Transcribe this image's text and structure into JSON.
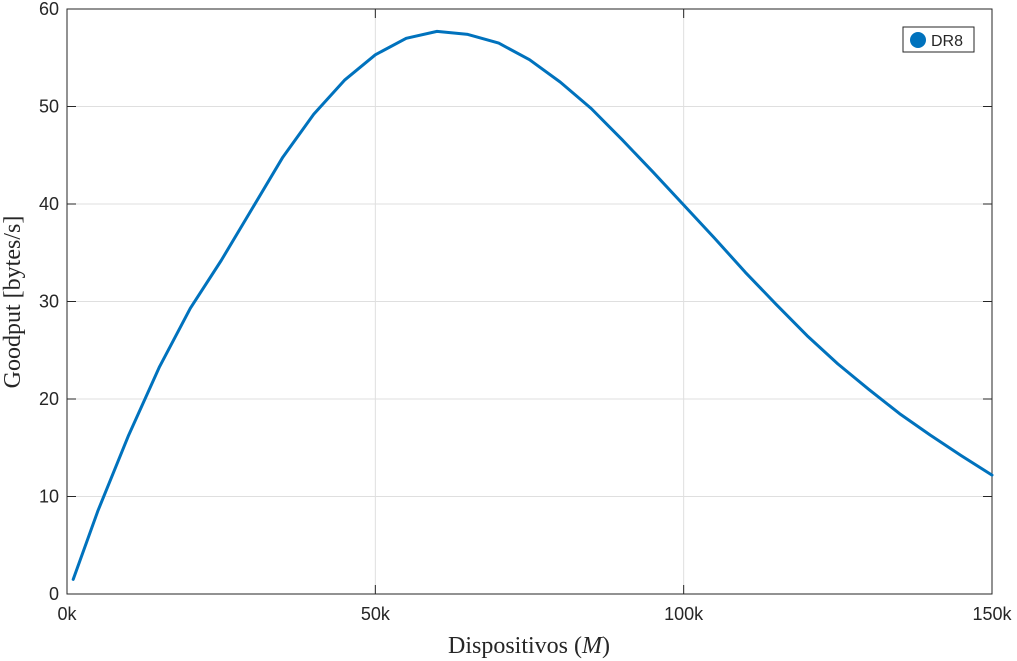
{
  "chart_data": {
    "type": "line",
    "xlabel": "Dispositivos",
    "xlabel_var": "M",
    "ylabel": "Goodput [bytes/s]",
    "xlim": [
      0,
      150000
    ],
    "ylim": [
      0,
      60
    ],
    "x_ticks": [
      0,
      50000,
      100000,
      150000
    ],
    "x_tick_labels": [
      "0k",
      "50k",
      "100k",
      "150k"
    ],
    "y_ticks": [
      0,
      10,
      20,
      30,
      40,
      50,
      60
    ],
    "y_tick_labels": [
      "0",
      "10",
      "20",
      "30",
      "40",
      "50",
      "60"
    ],
    "grid": true,
    "legend_position": "top-right",
    "series": [
      {
        "name": "DR8",
        "color": "#0072BD",
        "x": [
          1000,
          5000,
          10000,
          15000,
          20000,
          25000,
          30000,
          35000,
          40000,
          45000,
          50000,
          55000,
          60000,
          65000,
          70000,
          75000,
          80000,
          85000,
          90000,
          95000,
          100000,
          105000,
          110000,
          115000,
          120000,
          125000,
          130000,
          135000,
          140000,
          145000,
          150000
        ],
        "y": [
          1.5,
          8.5,
          16.3,
          23.3,
          29.3,
          34.2,
          39.5,
          44.8,
          49.2,
          52.7,
          55.3,
          57.0,
          57.7,
          57.4,
          56.5,
          54.8,
          52.5,
          49.8,
          46.6,
          43.3,
          39.9,
          36.5,
          33.0,
          29.7,
          26.5,
          23.6,
          21.0,
          18.5,
          16.3,
          14.2,
          12.2
        ]
      }
    ]
  }
}
